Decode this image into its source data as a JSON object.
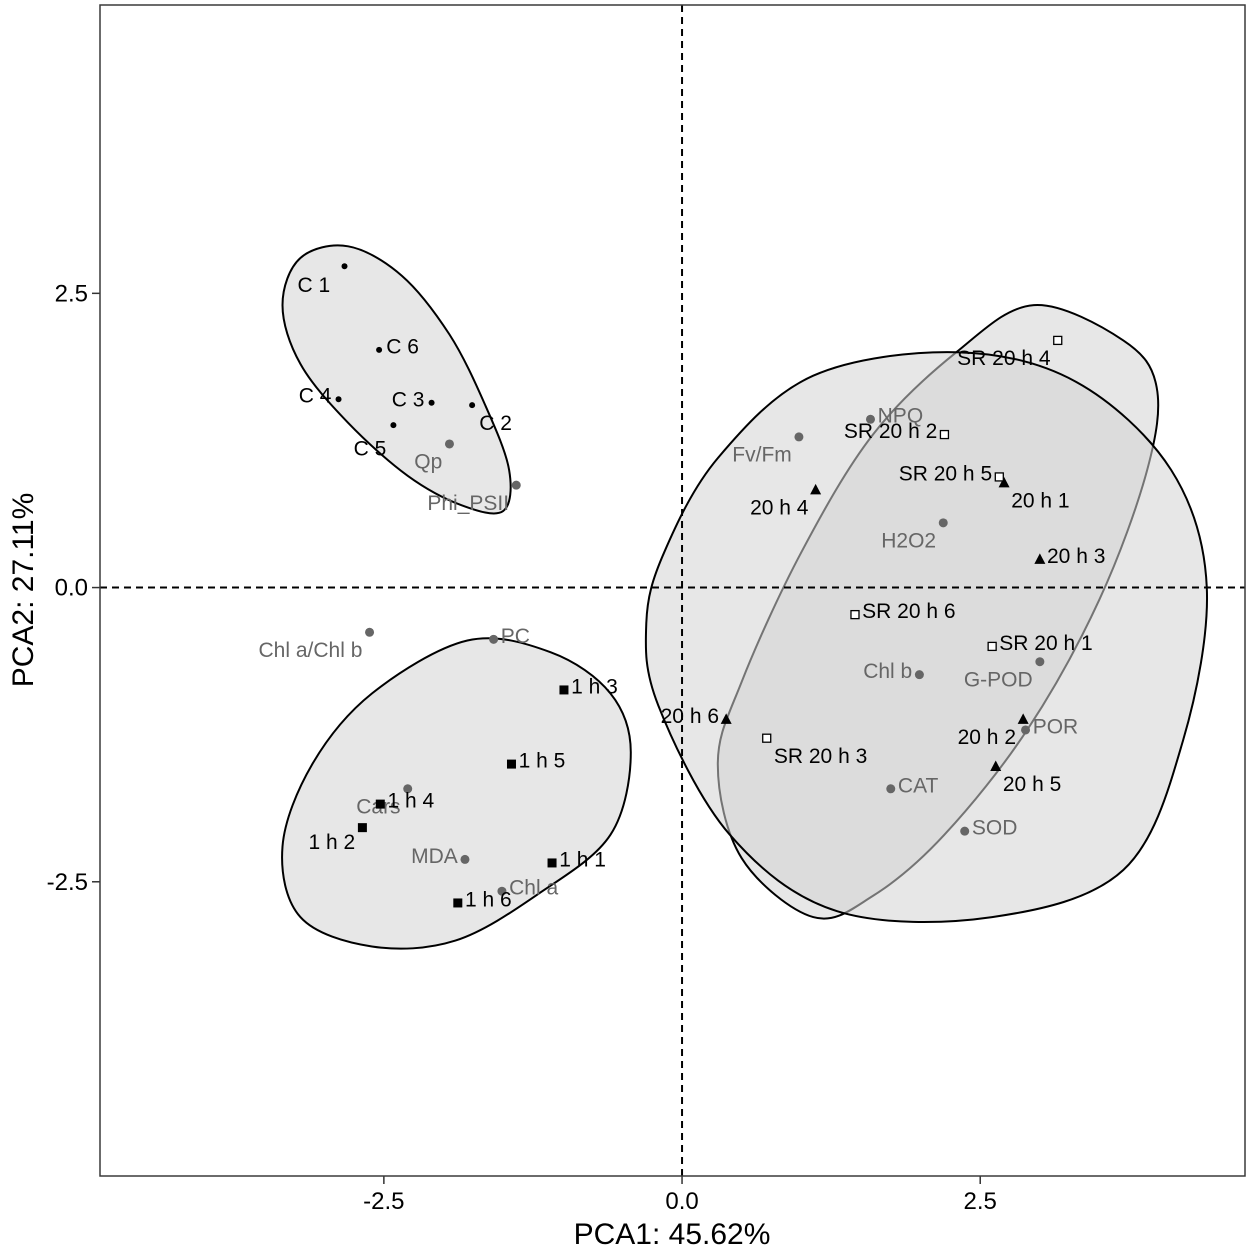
{
  "chart_data": {
    "type": "scatter",
    "xlabel": "PCA1: 45.62%",
    "ylabel": "PCA2: 27.11%",
    "xlim": [
      -4.88,
      4.72
    ],
    "ylim": [
      -5.0,
      4.95
    ],
    "xticks": [
      -2.5,
      0.0,
      2.5
    ],
    "xtick_labels": [
      "-2.5",
      "0.0",
      "2.5"
    ],
    "yticks": [
      -2.5,
      0.0,
      2.5
    ],
    "ytick_labels": [
      "-2.5",
      "0.0",
      "2.5"
    ],
    "grid": false,
    "reference_lines": {
      "x": 0,
      "y": 0,
      "style": "dashed"
    },
    "colors": {
      "samples": "#000000",
      "variables": "#666666",
      "ellipse_fill": "#d3d3d3",
      "ellipse_stroke": "#000000"
    },
    "groups": [
      {
        "name": "C",
        "marker": "dot",
        "points": [
          {
            "label": "C 1",
            "x": -2.83,
            "y": 2.73,
            "label_dx": -0.3,
            "label_dy": -0.16
          },
          {
            "label": "C 6",
            "x": -2.54,
            "y": 2.02,
            "label_dx": 0.15,
            "label_dy": 0.03
          },
          {
            "label": "C 4",
            "x": -2.88,
            "y": 1.6,
            "label_dx": -0.15,
            "label_dy": 0.03
          },
          {
            "label": "C 3",
            "x": -2.1,
            "y": 1.57,
            "label_dx": -0.15,
            "label_dy": 0.03
          },
          {
            "label": "C 2",
            "x": -1.76,
            "y": 1.55,
            "label_dx": 0.15,
            "label_dy": -0.15
          },
          {
            "label": "C 5",
            "x": -2.42,
            "y": 1.38,
            "label_dx": -0.15,
            "label_dy": -0.2
          }
        ]
      },
      {
        "name": "1 h",
        "marker": "square",
        "points": [
          {
            "label": "1 h 3",
            "x": -0.99,
            "y": -0.87,
            "label_dx": 0.15,
            "label_dy": 0.03
          },
          {
            "label": "1 h 5",
            "x": -1.43,
            "y": -1.5,
            "label_dx": 0.15,
            "label_dy": 0.03
          },
          {
            "label": "1 h 4",
            "x": -2.53,
            "y": -1.84,
            "label_dx": 0.15,
            "label_dy": 0.03
          },
          {
            "label": "1 h 2",
            "x": -2.68,
            "y": -2.04,
            "label_dx": -0.15,
            "label_dy": -0.12
          },
          {
            "label": "1 h 1",
            "x": -1.09,
            "y": -2.34,
            "label_dx": 0.15,
            "label_dy": 0.03
          },
          {
            "label": "1 h 6",
            "x": -1.88,
            "y": -2.68,
            "label_dx": 0.15,
            "label_dy": 0.03
          }
        ]
      },
      {
        "name": "20 h",
        "marker": "triangle",
        "points": [
          {
            "label": "20 h 4",
            "x": 1.12,
            "y": 0.83,
            "label_dx": -0.15,
            "label_dy": -0.15
          },
          {
            "label": "20 h 1",
            "x": 2.7,
            "y": 0.89,
            "label_dx": 0.15,
            "label_dy": -0.15
          },
          {
            "label": "20 h 3",
            "x": 3.0,
            "y": 0.24,
            "label_dx": 0.15,
            "label_dy": 0.03
          },
          {
            "label": "20 h 6",
            "x": 0.37,
            "y": -1.12,
            "label_dx": -0.15,
            "label_dy": 0.03
          },
          {
            "label": "20 h 2",
            "x": 2.86,
            "y": -1.12,
            "label_dx": -0.15,
            "label_dy": -0.15
          },
          {
            "label": "20 h 5",
            "x": 2.63,
            "y": -1.52,
            "label_dx": 0.15,
            "label_dy": -0.15
          }
        ]
      },
      {
        "name": "SR 20 h",
        "marker": "open-square",
        "points": [
          {
            "label": "SR 20 h 4",
            "x": 3.15,
            "y": 2.1,
            "label_dx": -0.15,
            "label_dy": -0.15
          },
          {
            "label": "SR 20 h 2",
            "x": 2.2,
            "y": 1.3,
            "label_dx": -0.15,
            "label_dy": 0.03
          },
          {
            "label": "SR 20 h 5",
            "x": 2.66,
            "y": 0.94,
            "label_dx": -0.15,
            "label_dy": 0.03
          },
          {
            "label": "SR 20 h 6",
            "x": 1.45,
            "y": -0.23,
            "label_dx": 0.15,
            "label_dy": 0.03
          },
          {
            "label": "SR 20 h 1",
            "x": 2.6,
            "y": -0.5,
            "label_dx": 0.15,
            "label_dy": 0.03
          },
          {
            "label": "SR 20 h 3",
            "x": 0.71,
            "y": -1.28,
            "label_dx": 0.15,
            "label_dy": -0.15
          }
        ]
      }
    ],
    "variables": [
      {
        "label": "NPQ",
        "x": 1.58,
        "y": 1.43,
        "label_dx": 0.15,
        "label_dy": 0.03
      },
      {
        "label": "Fv/Fm",
        "x": 0.98,
        "y": 1.28,
        "label_dx": -0.15,
        "label_dy": -0.15
      },
      {
        "label": "Qp",
        "x": -1.95,
        "y": 1.22,
        "label_dx": -0.15,
        "label_dy": -0.15
      },
      {
        "label": "Phi_PSII",
        "x": -1.39,
        "y": 0.87,
        "label_dx": -0.15,
        "label_dy": -0.15
      },
      {
        "label": "H2O2",
        "x": 2.19,
        "y": 0.55,
        "label_dx": -0.15,
        "label_dy": -0.15
      },
      {
        "label": "Chl a/Chl b",
        "x": -2.62,
        "y": -0.38,
        "label_dx": -0.15,
        "label_dy": -0.15
      },
      {
        "label": "PC",
        "x": -1.58,
        "y": -0.44,
        "label_dx": 0.15,
        "label_dy": 0.03
      },
      {
        "label": "Chl b",
        "x": 1.99,
        "y": -0.74,
        "label_dx": -0.15,
        "label_dy": 0.03
      },
      {
        "label": "G-POD",
        "x": 3.0,
        "y": -0.63,
        "label_dx": -0.15,
        "label_dy": -0.15
      },
      {
        "label": "POR",
        "x": 2.88,
        "y": -1.21,
        "label_dx": 0.15,
        "label_dy": 0.03
      },
      {
        "label": "CAT",
        "x": 1.75,
        "y": -1.71,
        "label_dx": 0.15,
        "label_dy": 0.03
      },
      {
        "label": "Cars",
        "x": -2.3,
        "y": -1.71,
        "label_dx": -0.15,
        "label_dy": -0.15
      },
      {
        "label": "SOD",
        "x": 2.37,
        "y": -2.07,
        "label_dx": 0.15,
        "label_dy": 0.03
      },
      {
        "label": "MDA",
        "x": -1.82,
        "y": -2.31,
        "label_dx": -0.15,
        "label_dy": 0.03
      },
      {
        "label": "Chl a",
        "x": -1.51,
        "y": -2.58,
        "label_dx": 0.15,
        "label_dy": 0.03
      }
    ],
    "ellipses": [
      {
        "group": "SR 20 h",
        "points": [
          [
            2.95,
            2.4
          ],
          [
            3.7,
            2.1
          ],
          [
            3.98,
            1.7
          ],
          [
            3.9,
            1.0
          ],
          [
            3.5,
            -0.1
          ],
          [
            2.9,
            -1.2
          ],
          [
            2.2,
            -2.1
          ],
          [
            1.6,
            -2.62
          ],
          [
            1.1,
            -2.8
          ],
          [
            0.5,
            -2.3
          ],
          [
            0.3,
            -1.5
          ],
          [
            0.5,
            -0.8
          ],
          [
            1.0,
            0.3
          ],
          [
            1.6,
            1.3
          ],
          [
            2.3,
            2.0
          ]
        ]
      },
      {
        "group": "20 h",
        "points": [
          [
            2.3,
            2.0
          ],
          [
            3.3,
            1.75
          ],
          [
            4.1,
            1.0
          ],
          [
            4.4,
            0.0
          ],
          [
            4.2,
            -1.3
          ],
          [
            3.7,
            -2.4
          ],
          [
            2.6,
            -2.8
          ],
          [
            1.3,
            -2.75
          ],
          [
            0.4,
            -2.1
          ],
          [
            -0.2,
            -1.0
          ],
          [
            -0.3,
            -0.3
          ],
          [
            -0.15,
            0.3
          ],
          [
            0.3,
            1.1
          ],
          [
            1.1,
            1.8
          ]
        ]
      },
      {
        "group": "1 h",
        "points": [
          [
            -1.8,
            -0.45
          ],
          [
            -1.1,
            -0.55
          ],
          [
            -0.6,
            -0.9
          ],
          [
            -0.43,
            -1.4
          ],
          [
            -0.6,
            -2.1
          ],
          [
            -1.2,
            -2.6
          ],
          [
            -1.9,
            -3.0
          ],
          [
            -2.6,
            -3.05
          ],
          [
            -3.2,
            -2.8
          ],
          [
            -3.35,
            -2.2
          ],
          [
            -3.1,
            -1.5
          ],
          [
            -2.6,
            -0.9
          ]
        ]
      },
      {
        "group": "C",
        "points": [
          [
            -2.8,
            2.9
          ],
          [
            -2.35,
            2.65
          ],
          [
            -1.95,
            2.15
          ],
          [
            -1.65,
            1.55
          ],
          [
            -1.45,
            1.0
          ],
          [
            -1.5,
            0.65
          ],
          [
            -1.85,
            0.7
          ],
          [
            -2.3,
            0.95
          ],
          [
            -2.8,
            1.4
          ],
          [
            -3.2,
            1.9
          ],
          [
            -3.35,
            2.4
          ],
          [
            -3.2,
            2.8
          ]
        ]
      }
    ]
  }
}
